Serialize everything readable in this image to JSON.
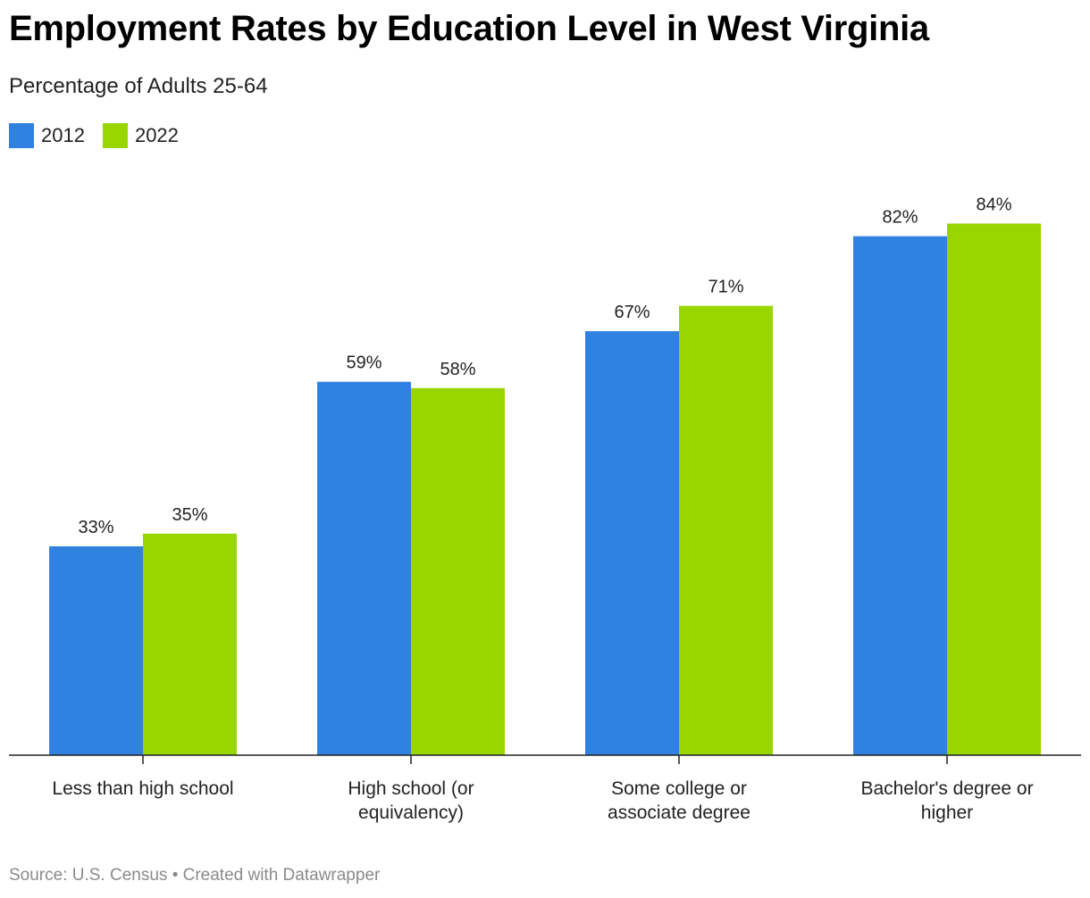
{
  "chart_data": {
    "type": "bar",
    "title": "Employment Rates by Education Level in West Virginia",
    "subtitle": "Percentage of Adults 25-64",
    "categories": [
      [
        "Less than high school"
      ],
      [
        "High school (or",
        "equivalency)"
      ],
      [
        "Some college or",
        "associate degree"
      ],
      [
        "Bachelor's degree or",
        "higher"
      ]
    ],
    "series": [
      {
        "name": "2012",
        "color": "#3182e0",
        "values": [
          33,
          59,
          67,
          82
        ],
        "labels": [
          "33%",
          "59%",
          "67%",
          "82%"
        ]
      },
      {
        "name": "2022",
        "color": "#99d600",
        "values": [
          35,
          58,
          71,
          84
        ],
        "labels": [
          "35%",
          "58%",
          "71%",
          "84%"
        ]
      }
    ],
    "ylim": [
      0,
      100
    ],
    "grid": false,
    "legend_position": "top-left"
  },
  "footer": {
    "source": "Source: U.S. Census • Created with Datawrapper"
  }
}
